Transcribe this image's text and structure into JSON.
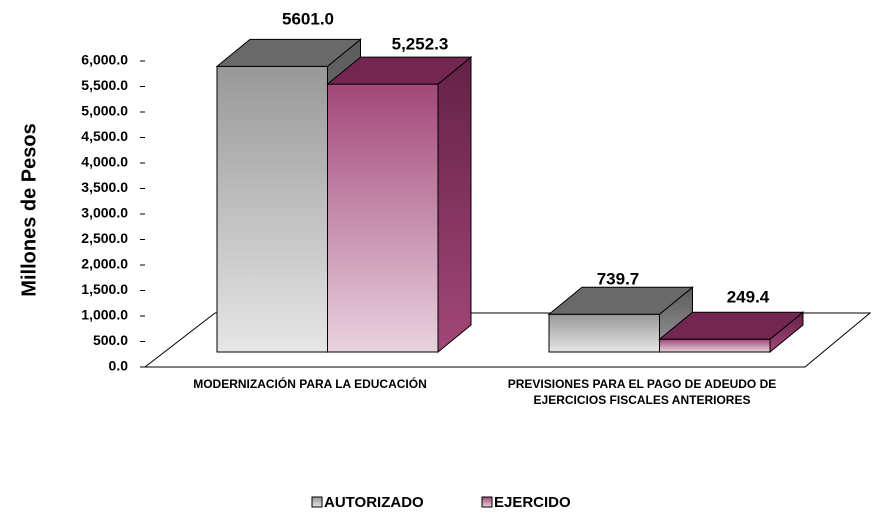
{
  "chart_data": {
    "type": "bar3d",
    "ylabel": "Millones de Pesos",
    "categories": [
      "MODERNIZACIÓN PARA LA EDUCACIÓN",
      "PREVISIONES PARA EL PAGO DE ADEUDO DE EJERCICIOS FISCALES ANTERIORES"
    ],
    "series": [
      {
        "name": "AUTORIZADO",
        "color": "#8c8c8c",
        "values": [
          5601.0,
          739.7
        ],
        "value_labels": [
          "5601.0",
          "739.7"
        ]
      },
      {
        "name": "EJERCIDO",
        "color": "#99336a",
        "values": [
          5252.3,
          249.4
        ],
        "value_labels": [
          "5,252.3",
          "249.4"
        ]
      }
    ],
    "ylim": [
      0,
      6000
    ],
    "yticks": [
      {
        "value": 0,
        "label": "0.0"
      },
      {
        "value": 500,
        "label": "500.0"
      },
      {
        "value": 1000,
        "label": "1,000.0"
      },
      {
        "value": 1500,
        "label": "1,500.0"
      },
      {
        "value": 2000,
        "label": "2,000.0"
      },
      {
        "value": 2500,
        "label": "2,500.0"
      },
      {
        "value": 3000,
        "label": "3,000.0"
      },
      {
        "value": 3500,
        "label": "3,500.0"
      },
      {
        "value": 4000,
        "label": "4,000.0"
      },
      {
        "value": 4500,
        "label": "4,500.0"
      },
      {
        "value": 5000,
        "label": "5,000.0"
      },
      {
        "value": 5500,
        "label": "5,500.0"
      },
      {
        "value": 6000,
        "label": "6,000.0"
      }
    ],
    "legend": "bottom"
  }
}
